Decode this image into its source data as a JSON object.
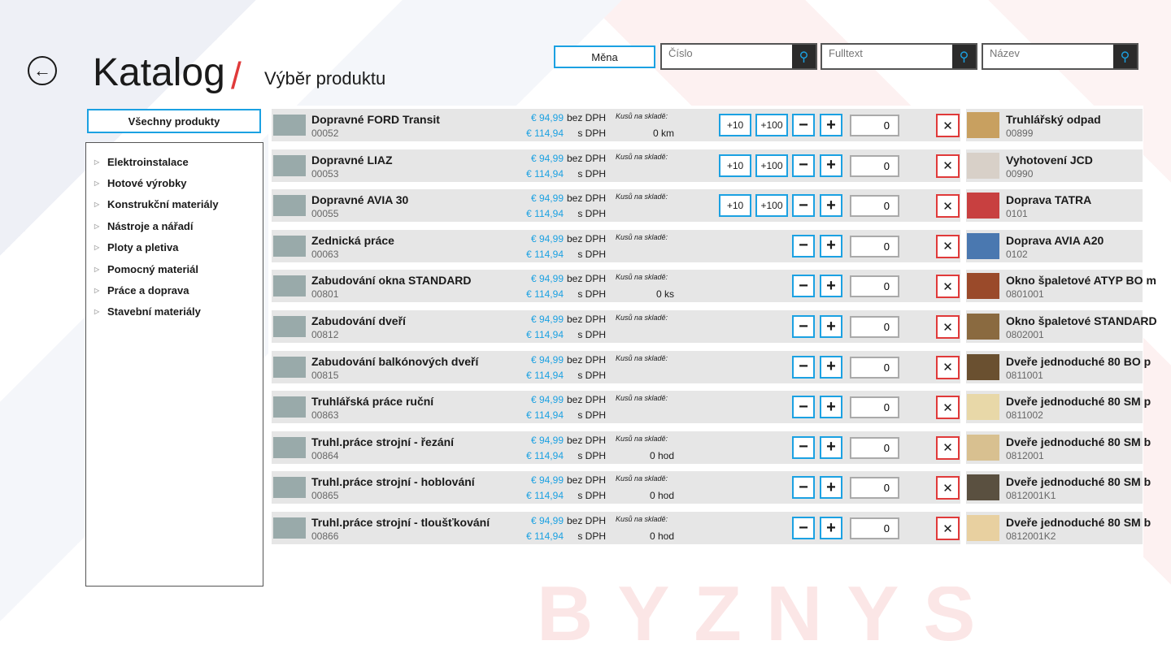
{
  "header": {
    "title": "Katalog",
    "separator": "/",
    "subtitle": "Výběr produktu",
    "back_icon": "arrow-left-icon"
  },
  "toolbar": {
    "currency_label": "Měna",
    "searches": [
      {
        "placeholder": "Číslo"
      },
      {
        "placeholder": "Fulltext"
      },
      {
        "placeholder": "Název"
      }
    ]
  },
  "sidebar": {
    "all_products_label": "Všechny produkty",
    "categories": [
      "Elektroinstalace",
      "Hotové výrobky",
      "Konstrukční materiály",
      "Nástroje a nářadí",
      "Ploty a pletiva",
      "Pomocný materiál",
      "Práce a doprava",
      "Stavební materiály"
    ]
  },
  "labels": {
    "without_vat": "bez DPH",
    "with_vat": "s DPH",
    "stock": "Kusů na skladě:",
    "plus10": "+10",
    "plus100": "+100",
    "minus": "−",
    "plus": "+",
    "remove": "✕"
  },
  "products": [
    {
      "name": "Dopravné FORD Transit",
      "code": "00052",
      "price": "€ 94,99",
      "price_vat": "€ 114,94",
      "stock": "0 km",
      "bulk": true,
      "qty": "0"
    },
    {
      "name": "Dopravné LIAZ",
      "code": "00053",
      "price": "€ 94,99",
      "price_vat": "€ 114,94",
      "stock": "",
      "bulk": true,
      "qty": "0"
    },
    {
      "name": "Dopravné AVIA 30",
      "code": "00055",
      "price": "€ 94,99",
      "price_vat": "€ 114,94",
      "stock": "",
      "bulk": true,
      "qty": "0"
    },
    {
      "name": "Zednická práce",
      "code": "00063",
      "price": "€ 94,99",
      "price_vat": "€ 114,94",
      "stock": "",
      "bulk": false,
      "qty": "0"
    },
    {
      "name": "Zabudování okna STANDARD",
      "code": "00801",
      "price": "€ 94,99",
      "price_vat": "€ 114,94",
      "stock": "0 ks",
      "bulk": false,
      "qty": "0"
    },
    {
      "name": "Zabudování dveří",
      "code": "00812",
      "price": "€ 94,99",
      "price_vat": "€ 114,94",
      "stock": "",
      "bulk": false,
      "qty": "0"
    },
    {
      "name": "Zabudování balkónových dveří",
      "code": "00815",
      "price": "€ 94,99",
      "price_vat": "€ 114,94",
      "stock": "",
      "bulk": false,
      "qty": "0"
    },
    {
      "name": "Truhlářská práce ruční",
      "code": "00863",
      "price": "€ 94,99",
      "price_vat": "€ 114,94",
      "stock": "",
      "bulk": false,
      "qty": "0"
    },
    {
      "name": "Truhl.práce strojní - řezání",
      "code": "00864",
      "price": "€ 94,99",
      "price_vat": "€ 114,94",
      "stock": "0 hod",
      "bulk": false,
      "qty": "0"
    },
    {
      "name": "Truhl.práce strojní - hoblování",
      "code": "00865",
      "price": "€ 94,99",
      "price_vat": "€ 114,94",
      "stock": "0 hod",
      "bulk": false,
      "qty": "0"
    },
    {
      "name": "Truhl.práce strojní - tloušťkování",
      "code": "00866",
      "price": "€ 94,99",
      "price_vat": "€ 114,94",
      "stock": "0 hod",
      "bulk": false,
      "qty": "0"
    }
  ],
  "side_products": [
    {
      "name": "Truhlářský odpad",
      "code": "00899",
      "color": "#c8a060"
    },
    {
      "name": "Vyhotovení JCD",
      "code": "00990",
      "color": "#d8d0c8"
    },
    {
      "name": "Doprava TATRA",
      "code": "0101",
      "color": "#c84040"
    },
    {
      "name": "Doprava AVIA A20",
      "code": "0102",
      "color": "#4a78b0"
    },
    {
      "name": "Okno špaletové ATYP BO m",
      "code": "0801001",
      "color": "#9a4a2a"
    },
    {
      "name": "Okno špaletové STANDARD",
      "code": "0802001",
      "color": "#8a6a40"
    },
    {
      "name": "Dveře jednoduché 80 BO p",
      "code": "0811001",
      "color": "#6a5030"
    },
    {
      "name": "Dveře jednoduché 80 SM p",
      "code": "0811002",
      "color": "#e8d8a8"
    },
    {
      "name": "Dveře jednoduché 80 SM b",
      "code": "0812001",
      "color": "#d8c090"
    },
    {
      "name": "Dveře jednoduché 80 SM b",
      "code": "0812001K1",
      "color": "#5a5040"
    },
    {
      "name": "Dveře jednoduché 80 SM b",
      "code": "0812001K2",
      "color": "#e8d0a0"
    }
  ],
  "watermark": "BYZNYS",
  "colors": {
    "accent": "#1ba1e2",
    "danger": "#e03a3a"
  }
}
